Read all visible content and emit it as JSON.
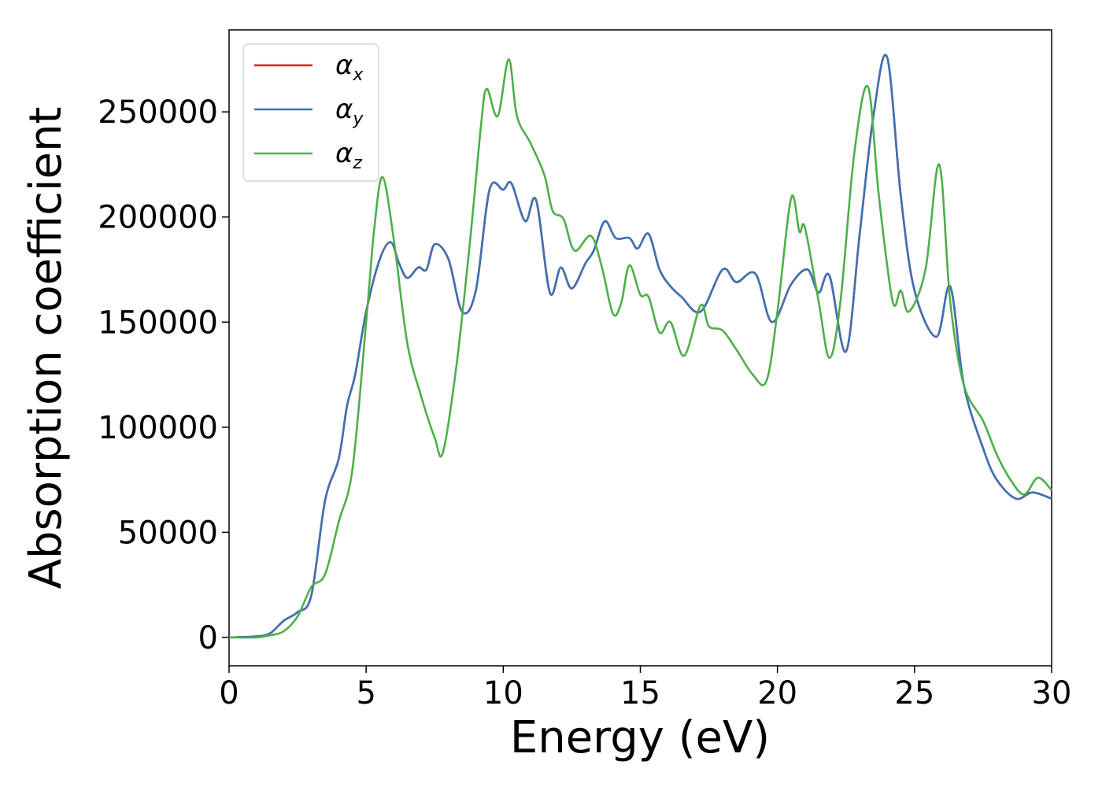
{
  "chart_data": {
    "type": "line",
    "title": "",
    "xlabel": "Energy (eV)",
    "ylabel": "Absorption coefficient",
    "xlim": [
      0,
      30
    ],
    "ylim": [
      -13500,
      289000
    ],
    "xticks": [
      0,
      5,
      10,
      15,
      20,
      25,
      30
    ],
    "yticks": [
      0,
      50000,
      100000,
      150000,
      200000,
      250000
    ],
    "grid": false,
    "legend_position": "top-left",
    "series": [
      {
        "name": "α",
        "subscript": "x",
        "color": "#e41a1c",
        "points": [
          [
            0,
            0
          ],
          [
            1,
            500
          ],
          [
            1.5,
            2000
          ],
          [
            2,
            8000
          ],
          [
            2.5,
            12000
          ],
          [
            3,
            20000
          ],
          [
            3.5,
            65000
          ],
          [
            4,
            85000
          ],
          [
            4.3,
            110000
          ],
          [
            4.6,
            125000
          ],
          [
            5,
            155000
          ],
          [
            5.5,
            180000
          ],
          [
            5.9,
            188000
          ],
          [
            6.2,
            178000
          ],
          [
            6.5,
            171000
          ],
          [
            6.9,
            176000
          ],
          [
            7.2,
            175000
          ],
          [
            7.5,
            187000
          ],
          [
            8,
            180000
          ],
          [
            8.5,
            155000
          ],
          [
            9,
            165000
          ],
          [
            9.5,
            213000
          ],
          [
            10,
            213000
          ],
          [
            10.3,
            216000
          ],
          [
            10.8,
            198000
          ],
          [
            11.2,
            208000
          ],
          [
            11.7,
            164000
          ],
          [
            12.1,
            176000
          ],
          [
            12.5,
            166000
          ],
          [
            13,
            178000
          ],
          [
            13.3,
            184000
          ],
          [
            13.7,
            198000
          ],
          [
            14.1,
            190000
          ],
          [
            14.6,
            190000
          ],
          [
            14.9,
            185000
          ],
          [
            15.3,
            192000
          ],
          [
            15.7,
            175000
          ],
          [
            16.1,
            167000
          ],
          [
            16.5,
            162000
          ],
          [
            17.2,
            155000
          ],
          [
            18,
            175000
          ],
          [
            18.5,
            169000
          ],
          [
            19.2,
            173000
          ],
          [
            19.8,
            150000
          ],
          [
            20.5,
            168000
          ],
          [
            21.1,
            175000
          ],
          [
            21.5,
            164000
          ],
          [
            21.9,
            172000
          ],
          [
            22.5,
            136000
          ],
          [
            23,
            192000
          ],
          [
            23.5,
            248000
          ],
          [
            24,
            276000
          ],
          [
            24.5,
            210000
          ],
          [
            25,
            165000
          ],
          [
            25.8,
            143000
          ],
          [
            26.3,
            167000
          ],
          [
            26.8,
            120000
          ],
          [
            27.5,
            90000
          ],
          [
            28,
            75000
          ],
          [
            28.7,
            66000
          ],
          [
            29.3,
            69000
          ],
          [
            30,
            66000
          ]
        ]
      },
      {
        "name": "α",
        "subscript": "y",
        "color": "#3d72b4",
        "points": [
          [
            0,
            0
          ],
          [
            1,
            500
          ],
          [
            1.5,
            2000
          ],
          [
            2,
            8000
          ],
          [
            2.5,
            12000
          ],
          [
            3,
            20000
          ],
          [
            3.5,
            65000
          ],
          [
            4,
            85000
          ],
          [
            4.3,
            110000
          ],
          [
            4.6,
            125000
          ],
          [
            5,
            155000
          ],
          [
            5.5,
            180000
          ],
          [
            5.9,
            188000
          ],
          [
            6.2,
            178000
          ],
          [
            6.5,
            171000
          ],
          [
            6.9,
            176000
          ],
          [
            7.2,
            175000
          ],
          [
            7.5,
            187000
          ],
          [
            8,
            180000
          ],
          [
            8.5,
            155000
          ],
          [
            9,
            165000
          ],
          [
            9.5,
            213000
          ],
          [
            10,
            213000
          ],
          [
            10.3,
            216000
          ],
          [
            10.8,
            198000
          ],
          [
            11.2,
            208000
          ],
          [
            11.7,
            164000
          ],
          [
            12.1,
            176000
          ],
          [
            12.5,
            166000
          ],
          [
            13,
            178000
          ],
          [
            13.3,
            184000
          ],
          [
            13.7,
            198000
          ],
          [
            14.1,
            190000
          ],
          [
            14.6,
            190000
          ],
          [
            14.9,
            185000
          ],
          [
            15.3,
            192000
          ],
          [
            15.7,
            175000
          ],
          [
            16.1,
            167000
          ],
          [
            16.5,
            162000
          ],
          [
            17.2,
            155000
          ],
          [
            18,
            175000
          ],
          [
            18.5,
            169000
          ],
          [
            19.2,
            173000
          ],
          [
            19.8,
            150000
          ],
          [
            20.5,
            168000
          ],
          [
            21.1,
            175000
          ],
          [
            21.5,
            164000
          ],
          [
            21.9,
            172000
          ],
          [
            22.5,
            136000
          ],
          [
            23,
            192000
          ],
          [
            23.5,
            248000
          ],
          [
            24,
            276000
          ],
          [
            24.5,
            210000
          ],
          [
            25,
            165000
          ],
          [
            25.8,
            143000
          ],
          [
            26.3,
            167000
          ],
          [
            26.8,
            120000
          ],
          [
            27.5,
            90000
          ],
          [
            28,
            75000
          ],
          [
            28.7,
            66000
          ],
          [
            29.3,
            69000
          ],
          [
            30,
            66000
          ]
        ]
      },
      {
        "name": "α",
        "subscript": "z",
        "color": "#4daf4a",
        "points": [
          [
            0,
            0
          ],
          [
            1,
            0
          ],
          [
            1.5,
            1000
          ],
          [
            2,
            3000
          ],
          [
            2.5,
            10000
          ],
          [
            3,
            24000
          ],
          [
            3.5,
            30000
          ],
          [
            4,
            55000
          ],
          [
            4.5,
            80000
          ],
          [
            5,
            150000
          ],
          [
            5.3,
            195000
          ],
          [
            5.6,
            219000
          ],
          [
            6,
            190000
          ],
          [
            6.5,
            140000
          ],
          [
            7,
            115000
          ],
          [
            7.5,
            95000
          ],
          [
            7.8,
            88000
          ],
          [
            8.3,
            130000
          ],
          [
            8.8,
            190000
          ],
          [
            9.2,
            245000
          ],
          [
            9.4,
            261000
          ],
          [
            9.8,
            248000
          ],
          [
            10.2,
            275000
          ],
          [
            10.5,
            248000
          ],
          [
            11,
            235000
          ],
          [
            11.5,
            220000
          ],
          [
            11.8,
            203000
          ],
          [
            12.2,
            199000
          ],
          [
            12.6,
            184000
          ],
          [
            13.2,
            191000
          ],
          [
            13.6,
            176000
          ],
          [
            14,
            154000
          ],
          [
            14.3,
            159000
          ],
          [
            14.6,
            177000
          ],
          [
            15,
            163000
          ],
          [
            15.3,
            162000
          ],
          [
            15.7,
            145000
          ],
          [
            16.1,
            150000
          ],
          [
            16.6,
            134000
          ],
          [
            17.2,
            158000
          ],
          [
            17.5,
            148000
          ],
          [
            18,
            146000
          ],
          [
            18.5,
            137000
          ],
          [
            19.1,
            125000
          ],
          [
            19.6,
            122000
          ],
          [
            20,
            155000
          ],
          [
            20.5,
            209000
          ],
          [
            20.8,
            193000
          ],
          [
            21,
            195000
          ],
          [
            21.5,
            160000
          ],
          [
            21.9,
            133000
          ],
          [
            22.3,
            160000
          ],
          [
            22.8,
            230000
          ],
          [
            23.3,
            262000
          ],
          [
            23.7,
            210000
          ],
          [
            24.2,
            160000
          ],
          [
            24.5,
            165000
          ],
          [
            24.8,
            155000
          ],
          [
            25.4,
            175000
          ],
          [
            25.9,
            225000
          ],
          [
            26.3,
            160000
          ],
          [
            26.8,
            120000
          ],
          [
            27.5,
            103000
          ],
          [
            28,
            87000
          ],
          [
            28.5,
            75000
          ],
          [
            29,
            68000
          ],
          [
            29.5,
            76000
          ],
          [
            30,
            70000
          ]
        ]
      }
    ]
  }
}
